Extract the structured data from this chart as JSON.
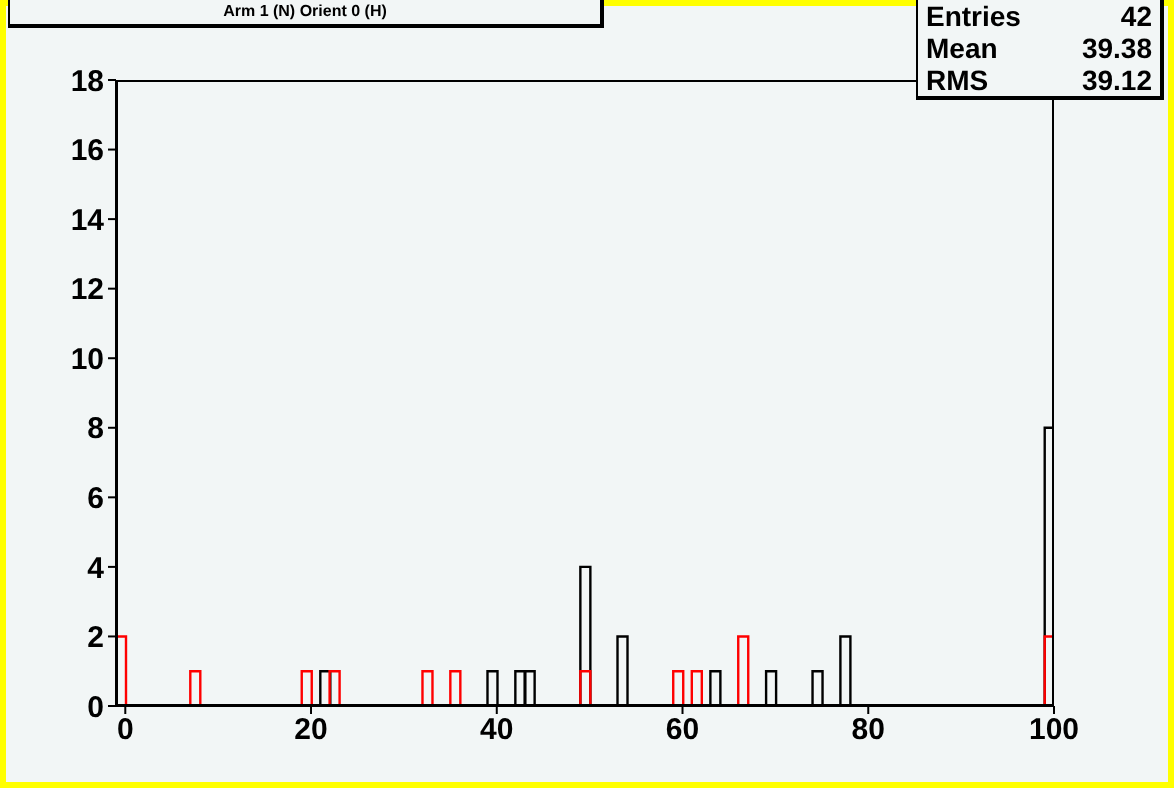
{
  "chart_data": {
    "type": "histogram",
    "title": "Arm 1 (N) Orient 0 (H)",
    "bins": [
      -1,
      0,
      1,
      2,
      3,
      4,
      5,
      6,
      7,
      8,
      9,
      10,
      11,
      12,
      13,
      14,
      15,
      16,
      17,
      18,
      19,
      20,
      21,
      22,
      23,
      24,
      25,
      26,
      27,
      28,
      29,
      30,
      31,
      32,
      33,
      34,
      35,
      36,
      37,
      38,
      39,
      40,
      41,
      42,
      43,
      44,
      45,
      46,
      47,
      48,
      49,
      50,
      51,
      52,
      53,
      54,
      55,
      56,
      57,
      58,
      59,
      60,
      61,
      62,
      63,
      64,
      65,
      66,
      67,
      68,
      69,
      70,
      71,
      72,
      73,
      74,
      75,
      76,
      77,
      78,
      79,
      80,
      81,
      82,
      83,
      84,
      85,
      86,
      87,
      88,
      89,
      90,
      91,
      92,
      93,
      94,
      95,
      96,
      97,
      98,
      99,
      100
    ],
    "series": [
      {
        "color": "#000000",
        "values": [
          0,
          0,
          0,
          0,
          0,
          0,
          0,
          0,
          0,
          0,
          0,
          0,
          0,
          0,
          0,
          0,
          0,
          0,
          0,
          0,
          0,
          0,
          1,
          0,
          0,
          0,
          0,
          0,
          0,
          0,
          0,
          0,
          0,
          0,
          0,
          0,
          0,
          0,
          0,
          0,
          1,
          0,
          0,
          1,
          1,
          0,
          0,
          0,
          0,
          0,
          4,
          0,
          0,
          0,
          2,
          0,
          0,
          0,
          0,
          0,
          0,
          0,
          0,
          0,
          1,
          0,
          0,
          0,
          0,
          0,
          1,
          0,
          0,
          0,
          0,
          1,
          0,
          0,
          2,
          0,
          0,
          0,
          0,
          0,
          0,
          0,
          0,
          0,
          0,
          0,
          0,
          0,
          0,
          0,
          0,
          0,
          0,
          0,
          0,
          0,
          8
        ]
      },
      {
        "color": "#ff0000",
        "values": [
          2,
          0,
          0,
          0,
          0,
          0,
          0,
          0,
          1,
          0,
          0,
          0,
          0,
          0,
          0,
          0,
          0,
          0,
          0,
          0,
          1,
          0,
          0,
          1,
          0,
          0,
          0,
          0,
          0,
          0,
          0,
          0,
          0,
          1,
          0,
          0,
          1,
          0,
          0,
          0,
          0,
          0,
          0,
          0,
          0,
          0,
          0,
          0,
          0,
          0,
          1,
          0,
          0,
          0,
          0,
          0,
          0,
          0,
          0,
          0,
          1,
          0,
          1,
          0,
          0,
          0,
          0,
          2,
          0,
          0,
          0,
          0,
          0,
          0,
          0,
          0,
          0,
          0,
          0,
          0,
          0,
          0,
          0,
          0,
          0,
          0,
          0,
          0,
          0,
          0,
          0,
          0,
          0,
          0,
          0,
          0,
          0,
          0,
          0,
          0,
          2
        ]
      }
    ],
    "xlim": [
      -1,
      100
    ],
    "xticks": [
      0,
      20,
      40,
      60,
      80,
      100
    ],
    "ylim": [
      0,
      18
    ],
    "yticks": [
      0,
      2,
      4,
      6,
      8,
      10,
      12,
      14,
      16,
      18
    ],
    "grid": false,
    "legend": false,
    "annotations": [
      "Entries 42",
      "Mean 39.38",
      "RMS 39.12"
    ]
  }
}
